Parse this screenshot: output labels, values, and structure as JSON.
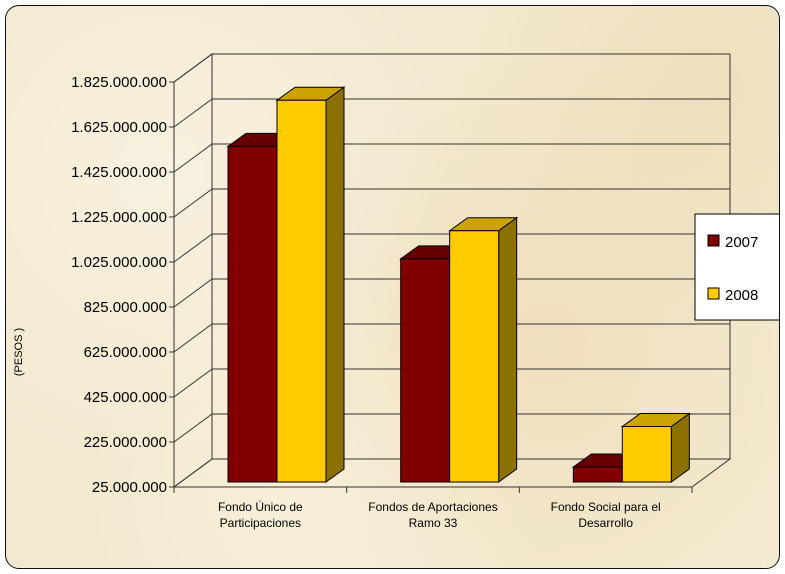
{
  "chart_data": {
    "type": "bar",
    "title": "",
    "xlabel": "",
    "ylabel": "(PESOS )",
    "categories": [
      [
        "Fondo Único de",
        "Participaciones"
      ],
      [
        "Fondos de Aportaciones",
        "Ramo 33"
      ],
      [
        "Fondo Social para el",
        "Desarrollo"
      ]
    ],
    "series": [
      {
        "name": "2007",
        "color": "#800000",
        "values": [
          1530000000,
          1030000000,
          105000000
        ]
      },
      {
        "name": "2008",
        "color": "#ffcc00",
        "values": [
          1735000000,
          1155000000,
          285000000
        ]
      }
    ],
    "ylim": [
      25000000,
      1825000000
    ],
    "yticks": [
      "25.000.000",
      "225.000.000",
      "425.000.000",
      "625.000.000",
      "825.000.000",
      "1.025.000.000",
      "1.225.000.000",
      "1.425.000.000",
      "1.625.000.000",
      "1.825.000.000"
    ],
    "grid": true,
    "legend": "right",
    "style": "3d-clustered-column"
  }
}
